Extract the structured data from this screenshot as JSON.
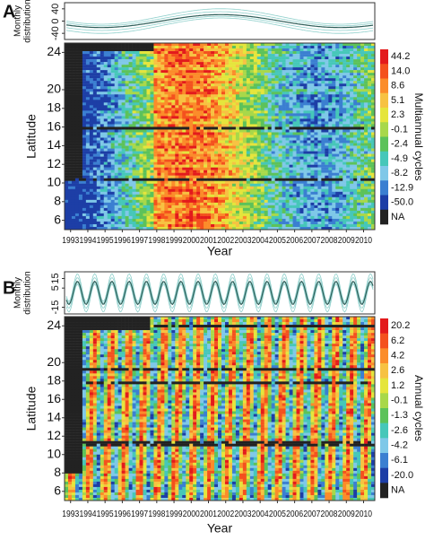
{
  "panels": [
    {
      "label": "A",
      "top_plot": {
        "ylabel_lines": [
          "Monthly",
          "distribution"
        ],
        "yticks": [
          40,
          0,
          -40
        ],
        "ylim": [
          -60,
          60
        ]
      },
      "heatmap": {
        "ylabel": "Latitude",
        "xlabel": "Year",
        "years": [
          1993,
          1994,
          1995,
          1996,
          1997,
          1998,
          1999,
          2000,
          2001,
          2002,
          2003,
          2004,
          2005,
          2006,
          2007,
          2008,
          2009,
          2010
        ],
        "yticks": [
          6,
          8,
          10,
          12,
          14,
          16,
          18,
          20,
          24
        ],
        "ylim": [
          5,
          25
        ]
      },
      "colorbar": {
        "title": "Multiannual cycles",
        "labels": [
          "44.2",
          "14.0",
          "8.6",
          "5.1",
          "2.3",
          "-0.1",
          "-2.4",
          "-4.9",
          "-8.2",
          "-12.9",
          "-50.0",
          "NA"
        ],
        "colors": [
          "#e31a1c",
          "#f4511e",
          "#fb8c2a",
          "#f7c242",
          "#e5e53c",
          "#a8d84a",
          "#5cc25a",
          "#46c7b9",
          "#7fc8e8",
          "#3b7fd1",
          "#1d3ea6",
          "#222222"
        ]
      }
    },
    {
      "label": "B",
      "top_plot": {
        "ylabel_lines": [
          "Monthly",
          "distribution"
        ],
        "yticks": [
          15,
          5,
          -15
        ],
        "ylim": [
          -22,
          22
        ]
      },
      "heatmap": {
        "ylabel": "Latitude",
        "xlabel": "Year",
        "years": [
          1993,
          1994,
          1995,
          1996,
          1997,
          1998,
          1999,
          2000,
          2001,
          2002,
          2003,
          2004,
          2005,
          2006,
          2007,
          2008,
          2009,
          2010
        ],
        "yticks": [
          6,
          8,
          10,
          12,
          14,
          16,
          18,
          20,
          24
        ],
        "ylim": [
          5,
          25
        ]
      },
      "colorbar": {
        "title": "Annual cycles",
        "labels": [
          "20.2",
          "6.2",
          "4.2",
          "2.6",
          "1.2",
          "-0.1",
          "-1.3",
          "-2.6",
          "-4.2",
          "-6.1",
          "-20.0",
          "NA"
        ],
        "colors": [
          "#e31a1c",
          "#f4511e",
          "#fb8c2a",
          "#f7c242",
          "#e5e53c",
          "#a8d84a",
          "#5cc25a",
          "#46c7b9",
          "#7fc8e8",
          "#3b7fd1",
          "#1d3ea6",
          "#222222"
        ]
      }
    }
  ]
}
